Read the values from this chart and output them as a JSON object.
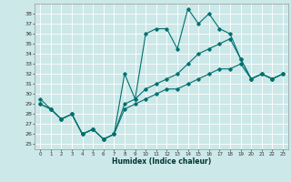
{
  "xlabel": "Humidex (Indice chaleur)",
  "bg_color": "#cce8e8",
  "grid_color": "#ffffff",
  "line_color": "#007070",
  "xlim": [
    -0.5,
    23.5
  ],
  "ylim": [
    24.5,
    39.0
  ],
  "yticks": [
    25,
    26,
    27,
    28,
    29,
    30,
    31,
    32,
    33,
    34,
    35,
    36,
    37,
    38
  ],
  "xticks": [
    0,
    1,
    2,
    3,
    4,
    5,
    6,
    7,
    8,
    9,
    10,
    11,
    12,
    13,
    14,
    15,
    16,
    17,
    18,
    19,
    20,
    21,
    22,
    23
  ],
  "line1_x": [
    0,
    1,
    2,
    3,
    4,
    5,
    6,
    7,
    8,
    9,
    10,
    11,
    12,
    13,
    14,
    15,
    16,
    17,
    18,
    19,
    20,
    21,
    22,
    23
  ],
  "line1_y": [
    29.5,
    28.5,
    27.5,
    28.0,
    26.0,
    26.5,
    25.5,
    26.0,
    32.0,
    29.5,
    36.0,
    36.5,
    36.5,
    34.5,
    38.5,
    37.0,
    38.0,
    36.5,
    36.0,
    33.5,
    31.5,
    32.0,
    31.5,
    32.0
  ],
  "line2_x": [
    0,
    1,
    2,
    3,
    4,
    5,
    6,
    7,
    8,
    9,
    10,
    11,
    12,
    13,
    14,
    15,
    16,
    17,
    18,
    19,
    20,
    21,
    22,
    23
  ],
  "line2_y": [
    29.0,
    28.5,
    27.5,
    28.0,
    26.0,
    26.5,
    25.5,
    26.0,
    29.0,
    29.5,
    30.5,
    31.0,
    31.5,
    32.0,
    33.0,
    34.0,
    34.5,
    35.0,
    35.5,
    33.5,
    31.5,
    32.0,
    31.5,
    32.0
  ],
  "line3_x": [
    0,
    1,
    2,
    3,
    4,
    5,
    6,
    7,
    8,
    9,
    10,
    11,
    12,
    13,
    14,
    15,
    16,
    17,
    18,
    19,
    20,
    21,
    22,
    23
  ],
  "line3_y": [
    29.0,
    28.5,
    27.5,
    28.0,
    26.0,
    26.5,
    25.5,
    26.0,
    28.5,
    29.0,
    29.5,
    30.0,
    30.5,
    30.5,
    31.0,
    31.5,
    32.0,
    32.5,
    32.5,
    33.0,
    31.5,
    32.0,
    31.5,
    32.0
  ]
}
